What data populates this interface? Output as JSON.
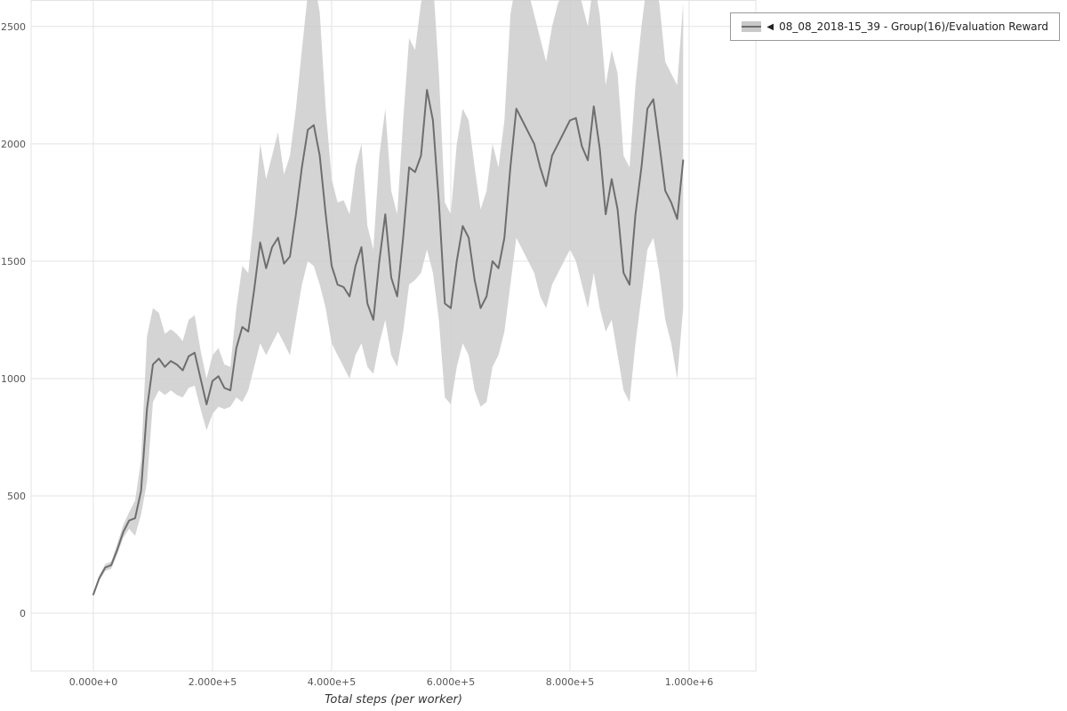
{
  "legend": {
    "collapse_icon": "◀",
    "label": "08_08_2018-15_39 - Group(16)/Evaluation Reward"
  },
  "chart_data": {
    "type": "line",
    "title": "",
    "xlabel": "Total steps (per worker)",
    "ylabel": "",
    "grid": true,
    "legend_position": "top-right",
    "xlim": [
      -104500,
      1112000
    ],
    "ylim": [
      -246,
      2613
    ],
    "x_ticks": [
      0,
      200000,
      400000,
      600000,
      800000,
      1000000
    ],
    "x_tick_labels": [
      "0.000e+0",
      "2.000e+5",
      "4.000e+5",
      "6.000e+5",
      "8.000e+5",
      "1.000e+6"
    ],
    "y_ticks": [
      0,
      500,
      1000,
      1500,
      2000,
      2500
    ],
    "y_tick_labels": [
      "0",
      "500",
      "1000",
      "1500",
      "2000",
      "2500"
    ],
    "colors": {
      "grid": "#e3e3e3",
      "tick_text": "#555555",
      "line": "#6e6e6e",
      "band": "#c9c9c9"
    },
    "series": [
      {
        "name": "08_08_2018-15_39 - Group(16)/Evaluation Reward",
        "line_color": "#6e6e6e",
        "band_color": "#c9c9c9",
        "x_start": 0,
        "x_step": 10000,
        "mean": [
          80,
          150,
          195,
          205,
          270,
          345,
          395,
          405,
          520,
          870,
          1060,
          1085,
          1050,
          1075,
          1060,
          1035,
          1095,
          1110,
          1000,
          890,
          990,
          1010,
          960,
          950,
          1130,
          1220,
          1200,
          1380,
          1580,
          1470,
          1560,
          1600,
          1490,
          1520,
          1700,
          1900,
          2060,
          2080,
          1950,
          1700,
          1480,
          1400,
          1390,
          1350,
          1480,
          1560,
          1320,
          1250,
          1500,
          1700,
          1430,
          1350,
          1600,
          1900,
          1880,
          1950,
          2230,
          2100,
          1750,
          1320,
          1300,
          1500,
          1650,
          1600,
          1420,
          1300,
          1350,
          1500,
          1470,
          1600,
          1900,
          2150,
          2100,
          2050,
          2000,
          1900,
          1820,
          1950,
          2000,
          2050,
          2100,
          2110,
          1990,
          1930,
          2160,
          1980,
          1700,
          1850,
          1720,
          1450,
          1400,
          1700,
          1900,
          2150,
          2190,
          2000,
          1800,
          1750,
          1680,
          1930
        ],
        "lower": [
          75,
          140,
          180,
          190,
          250,
          320,
          360,
          330,
          420,
          560,
          900,
          950,
          930,
          950,
          930,
          920,
          960,
          970,
          870,
          780,
          850,
          880,
          870,
          880,
          920,
          900,
          950,
          1050,
          1150,
          1100,
          1150,
          1200,
          1150,
          1100,
          1250,
          1400,
          1500,
          1480,
          1400,
          1300,
          1150,
          1100,
          1050,
          1000,
          1100,
          1150,
          1050,
          1020,
          1150,
          1250,
          1100,
          1050,
          1200,
          1400,
          1420,
          1450,
          1550,
          1450,
          1250,
          920,
          890,
          1050,
          1150,
          1100,
          950,
          880,
          900,
          1050,
          1100,
          1200,
          1400,
          1600,
          1550,
          1500,
          1450,
          1350,
          1300,
          1400,
          1450,
          1500,
          1550,
          1500,
          1400,
          1300,
          1450,
          1300,
          1200,
          1250,
          1100,
          950,
          900,
          1150,
          1350,
          1550,
          1600,
          1450,
          1250,
          1150,
          1000,
          1300
        ],
        "upper": [
          85,
          160,
          210,
          220,
          295,
          375,
          430,
          480,
          650,
          1180,
          1300,
          1280,
          1190,
          1210,
          1190,
          1160,
          1250,
          1270,
          1120,
          1000,
          1100,
          1130,
          1060,
          1050,
          1300,
          1480,
          1450,
          1700,
          2000,
          1850,
          1950,
          2050,
          1870,
          1950,
          2150,
          2400,
          2640,
          2700,
          2560,
          2150,
          1850,
          1750,
          1760,
          1700,
          1900,
          2000,
          1650,
          1550,
          1950,
          2150,
          1800,
          1700,
          2100,
          2450,
          2400,
          2600,
          2700,
          2700,
          2300,
          1750,
          1700,
          2000,
          2150,
          2100,
          1900,
          1720,
          1800,
          2000,
          1900,
          2100,
          2550,
          2700,
          2700,
          2650,
          2550,
          2450,
          2350,
          2500,
          2600,
          2650,
          2700,
          2700,
          2600,
          2500,
          2700,
          2550,
          2250,
          2400,
          2300,
          1950,
          1900,
          2250,
          2500,
          2700,
          2700,
          2600,
          2350,
          2300,
          2250,
          2600
        ]
      }
    ]
  }
}
